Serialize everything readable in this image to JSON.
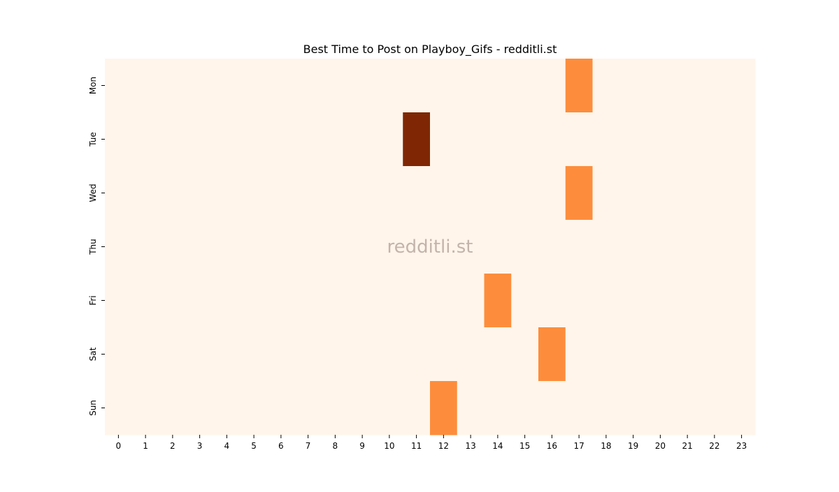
{
  "chart_data": {
    "type": "heatmap",
    "title": "Best Time to Post on Playboy_Gifs - redditli.st",
    "xlabel": "",
    "ylabel": "",
    "x_categories": [
      "0",
      "1",
      "2",
      "3",
      "4",
      "5",
      "6",
      "7",
      "8",
      "9",
      "10",
      "11",
      "12",
      "13",
      "14",
      "15",
      "16",
      "17",
      "18",
      "19",
      "20",
      "21",
      "22",
      "23"
    ],
    "y_categories": [
      "Mon",
      "Tue",
      "Wed",
      "Thu",
      "Fri",
      "Sat",
      "Sun"
    ],
    "values": [
      [
        0,
        0,
        0,
        0,
        0,
        0,
        0,
        0,
        0,
        0,
        0,
        0,
        0,
        0,
        0,
        0,
        0,
        1,
        0,
        0,
        0,
        0,
        0,
        0
      ],
      [
        0,
        0,
        0,
        0,
        0,
        0,
        0,
        0,
        0,
        0,
        0,
        2,
        0,
        0,
        0,
        0,
        0,
        0,
        0,
        0,
        0,
        0,
        0,
        0
      ],
      [
        0,
        0,
        0,
        0,
        0,
        0,
        0,
        0,
        0,
        0,
        0,
        0,
        0,
        0,
        0,
        0,
        0,
        1,
        0,
        0,
        0,
        0,
        0,
        0
      ],
      [
        0,
        0,
        0,
        0,
        0,
        0,
        0,
        0,
        0,
        0,
        0,
        0,
        0,
        0,
        0,
        0,
        0,
        0,
        0,
        0,
        0,
        0,
        0,
        0
      ],
      [
        0,
        0,
        0,
        0,
        0,
        0,
        0,
        0,
        0,
        0,
        0,
        0,
        0,
        0,
        1,
        0,
        0,
        0,
        0,
        0,
        0,
        0,
        0,
        0
      ],
      [
        0,
        0,
        0,
        0,
        0,
        0,
        0,
        0,
        0,
        0,
        0,
        0,
        0,
        0,
        0,
        0,
        1,
        0,
        0,
        0,
        0,
        0,
        0,
        0
      ],
      [
        0,
        0,
        0,
        0,
        0,
        0,
        0,
        0,
        0,
        0,
        0,
        0,
        1,
        0,
        0,
        0,
        0,
        0,
        0,
        0,
        0,
        0,
        0,
        0
      ]
    ],
    "colormap": {
      "0": "#fff5eb",
      "1": "#fd8d3c",
      "2": "#7f2704"
    },
    "watermark": "redditli.st"
  }
}
